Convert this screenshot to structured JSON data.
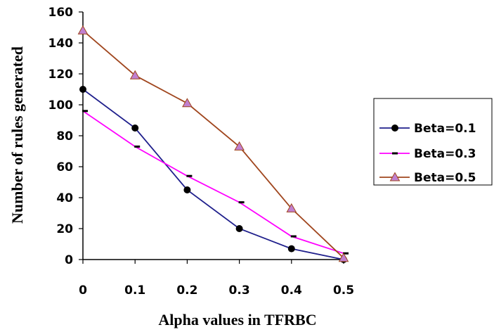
{
  "chart_data": {
    "type": "line",
    "title": "",
    "xlabel": "Alpha values in TFRBC",
    "ylabel": "Number of rules generated",
    "x": [
      0,
      0.1,
      0.2,
      0.3,
      0.4,
      0.5
    ],
    "x_tick_labels": [
      "0",
      "0.1",
      "0.2",
      "0.3",
      "0.4",
      "0.5"
    ],
    "y_ticks": [
      0,
      20,
      40,
      60,
      80,
      100,
      120,
      140,
      160
    ],
    "ylim": [
      0,
      160
    ],
    "grid": false,
    "legend_position": "right",
    "series": [
      {
        "name": "Beta=0.1",
        "values": [
          110,
          85,
          45,
          20,
          7,
          0
        ],
        "color": "#1f1f8c",
        "marker": "circle"
      },
      {
        "name": "Beta=0.3",
        "values": [
          96,
          73,
          54,
          37,
          15,
          4
        ],
        "color": "#ff00ff",
        "marker": "dash"
      },
      {
        "name": "Beta=0.5",
        "values": [
          148,
          119,
          101,
          73,
          33,
          1
        ],
        "color": "#a0461e",
        "marker": "triangle",
        "marker_fill": "#c080d0"
      }
    ]
  }
}
